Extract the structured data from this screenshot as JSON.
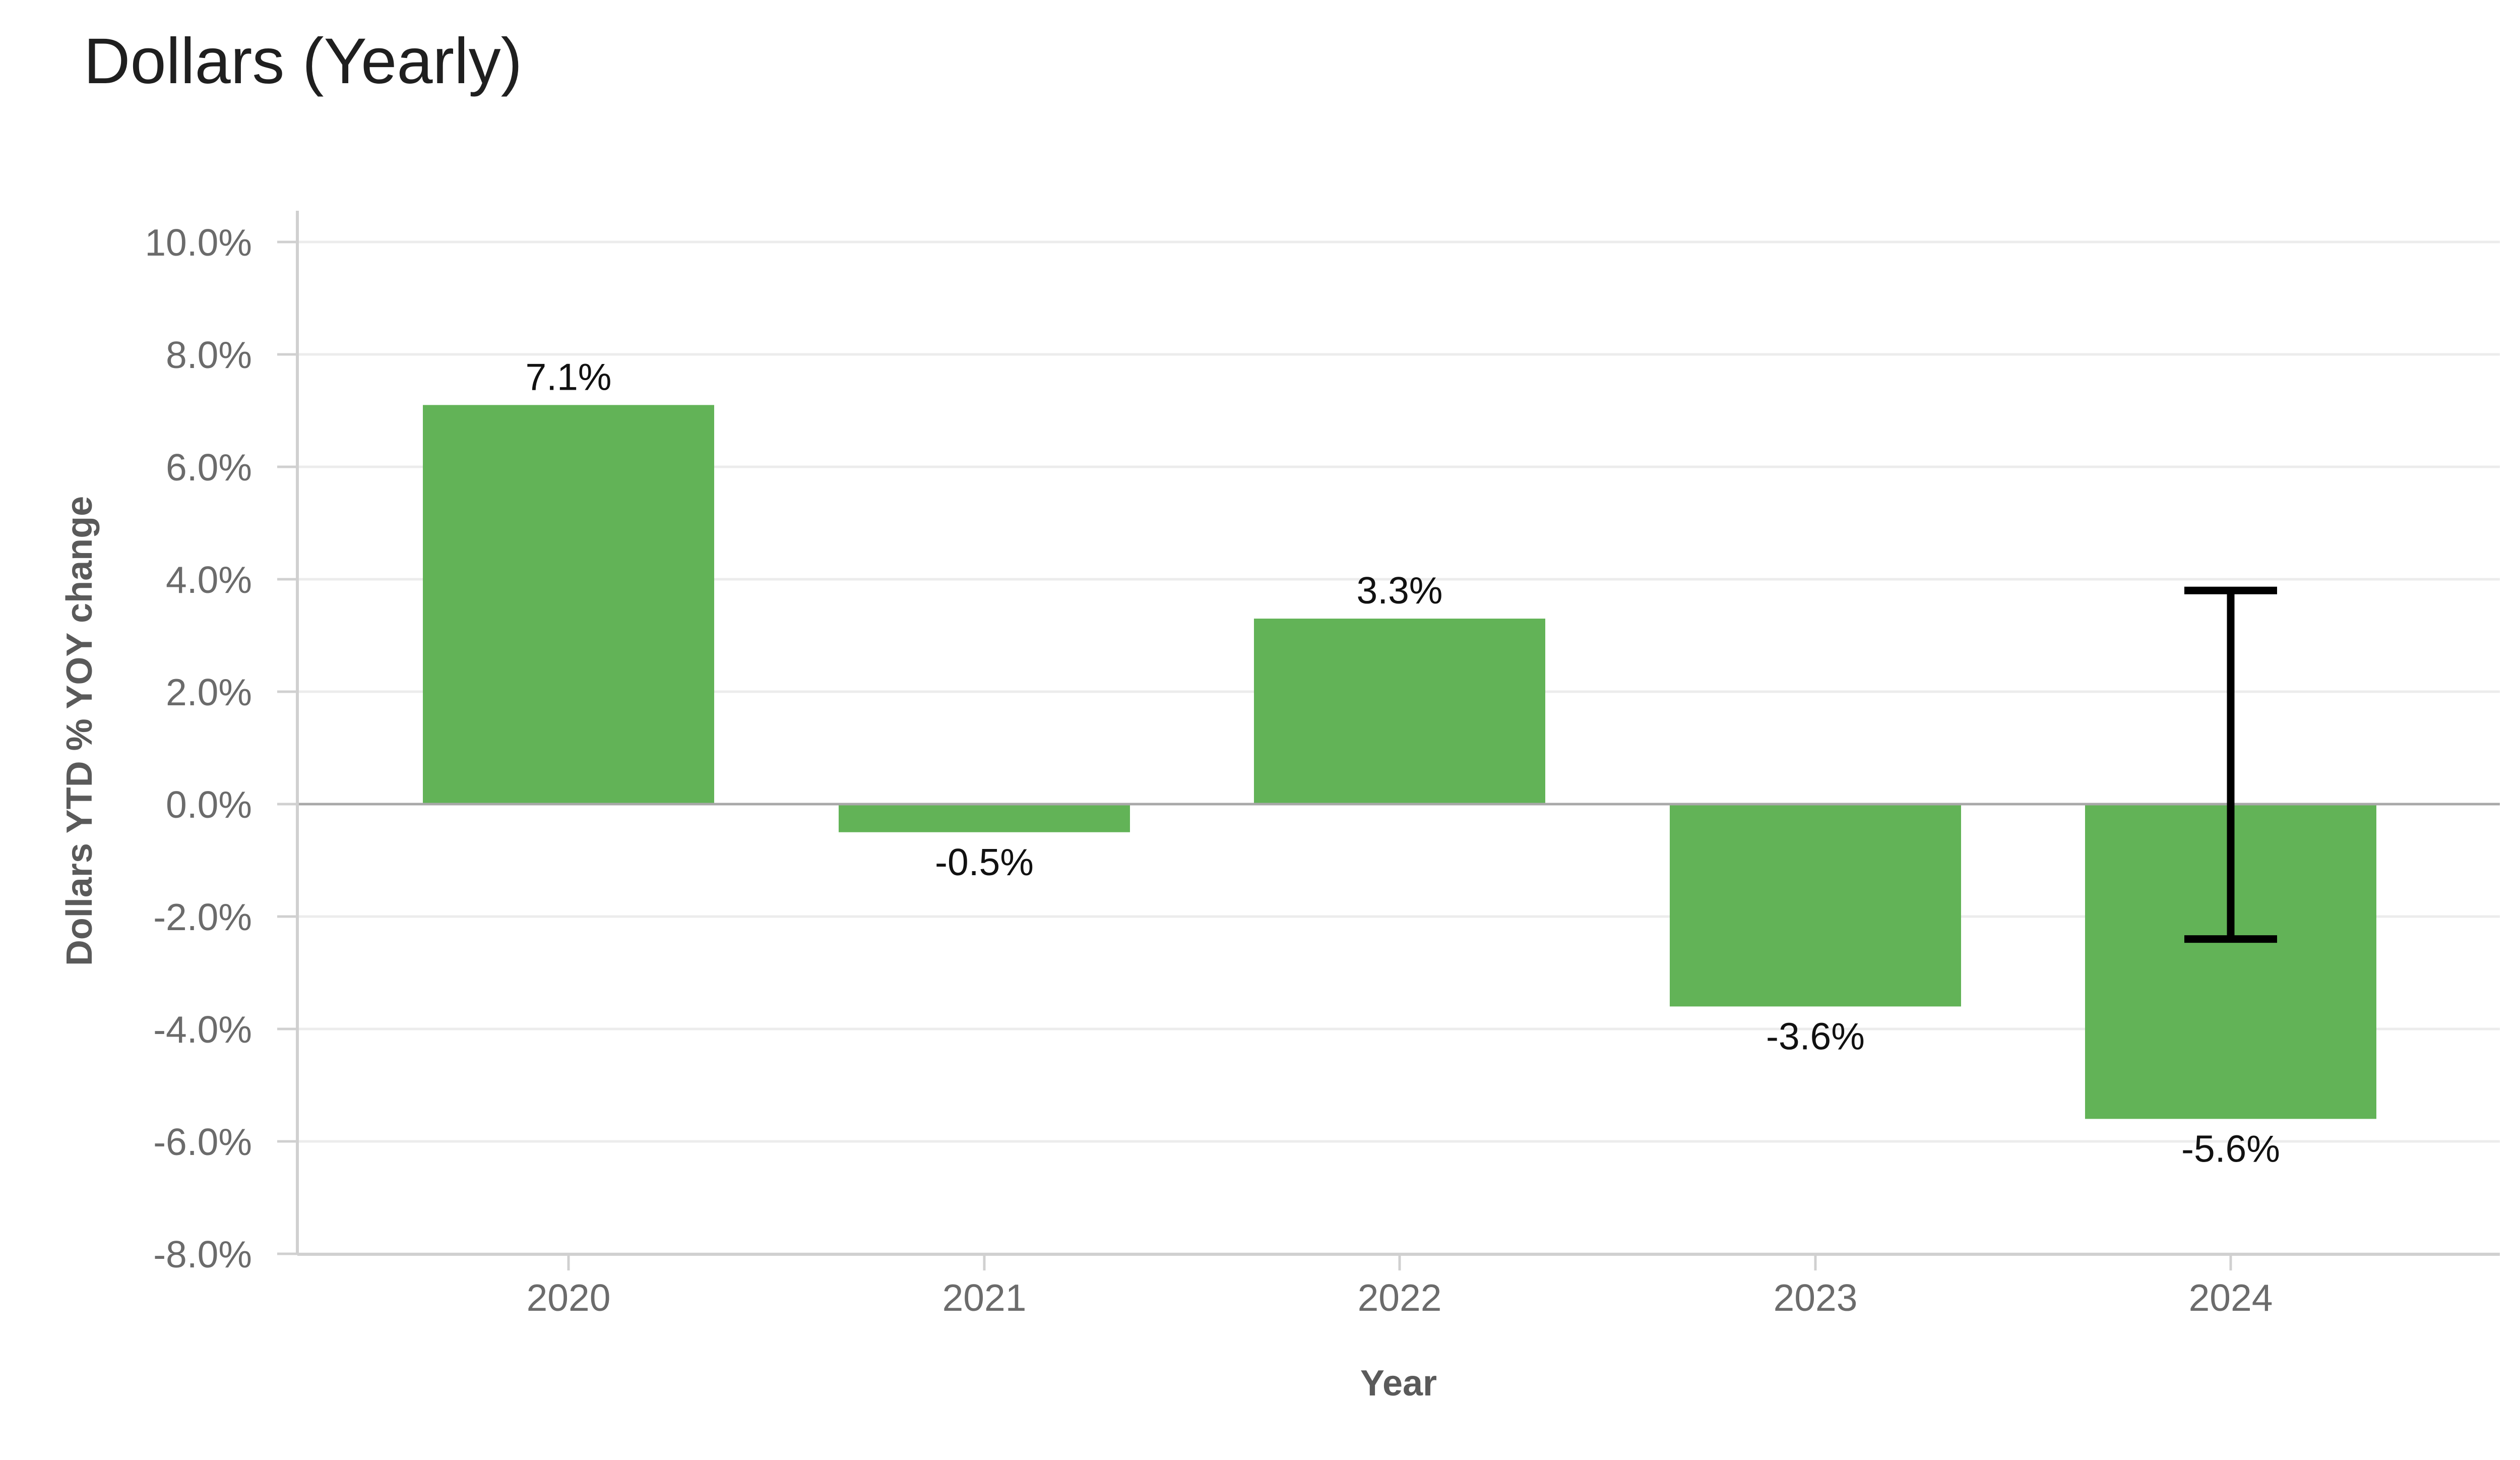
{
  "chart_data": {
    "type": "bar",
    "title": "Dollars (Yearly)",
    "xlabel": "Year",
    "ylabel": "Dollars YTD % YOY change",
    "categories": [
      "2020",
      "2021",
      "2022",
      "2023",
      "2024"
    ],
    "values": [
      7.1,
      -0.5,
      3.3,
      -3.6,
      -5.6
    ],
    "value_labels": [
      "7.1%",
      "-0.5%",
      "3.3%",
      "-3.6%",
      "-5.6%"
    ],
    "error_bar": {
      "category": "2024",
      "low": -2.4,
      "high": 3.8
    },
    "ylim": [
      -8,
      10
    ],
    "yticks": [
      10,
      8,
      6,
      4,
      2,
      0,
      -2,
      -4,
      -6,
      -8
    ],
    "ytick_labels": [
      "10.0%",
      "8.0%",
      "6.0%",
      "4.0%",
      "2.0%",
      "0.0%",
      "-2.0%",
      "-4.0%",
      "-6.0%",
      "-8.0%"
    ],
    "grid": true,
    "legend": "none",
    "colors": {
      "bar": "#62b357",
      "error_bar": "#000000",
      "gridline": "#ececec",
      "zero_line": "#a8a8a8",
      "axis": "#d0d0d0"
    }
  }
}
